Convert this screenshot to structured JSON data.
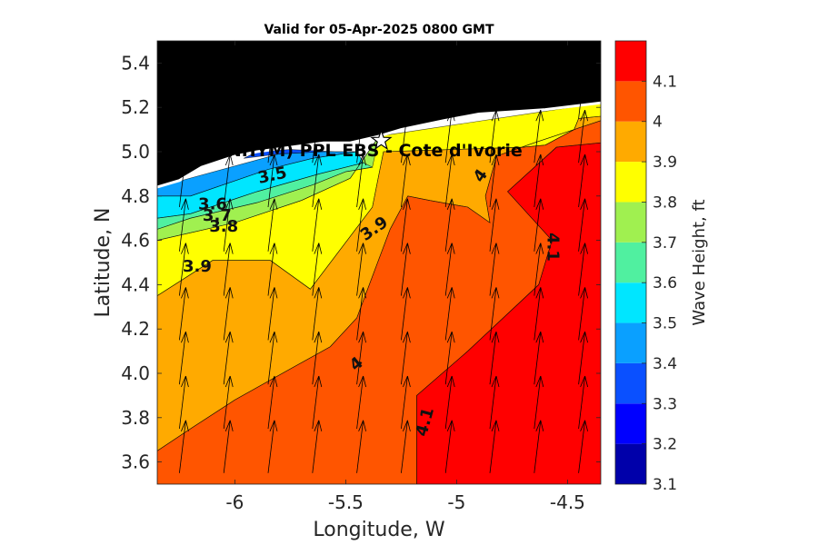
{
  "chart_data": {
    "type": "heatmap",
    "title": "Valid for 05-Apr-2025 0800 GMT",
    "xlabel": "Longitude, W",
    "ylabel": "Latitude, N",
    "xlim": [
      -6.35,
      -4.35
    ],
    "ylim": [
      3.5,
      5.5
    ],
    "xticks": [
      -6,
      -5.5,
      -5,
      -4.5
    ],
    "yticks": [
      3.6,
      3.8,
      4,
      4.2,
      4.4,
      4.6,
      4.8,
      5,
      5.2,
      5.4
    ],
    "colorbar": {
      "label": "Wave Height, ft",
      "range": [
        3.1,
        4.2
      ],
      "ticks": [
        3.1,
        3.2,
        3.3,
        3.4,
        3.5,
        3.6,
        3.7,
        3.8,
        3.9,
        4,
        4.1
      ],
      "bands": [
        {
          "from": 3.1,
          "to": 3.2,
          "color": "#0000aa"
        },
        {
          "from": 3.2,
          "to": 3.3,
          "color": "#0000ff"
        },
        {
          "from": 3.3,
          "to": 3.4,
          "color": "#0a50ff"
        },
        {
          "from": 3.4,
          "to": 3.5,
          "color": "#0aa0ff"
        },
        {
          "from": 3.5,
          "to": 3.6,
          "color": "#00e6ff"
        },
        {
          "from": 3.6,
          "to": 3.7,
          "color": "#50f0a0"
        },
        {
          "from": 3.7,
          "to": 3.8,
          "color": "#a0f050"
        },
        {
          "from": 3.8,
          "to": 3.9,
          "color": "#ffff00"
        },
        {
          "from": 3.9,
          "to": 4.0,
          "color": "#ffaa00"
        },
        {
          "from": 4.0,
          "to": 4.1,
          "color": "#ff5500"
        },
        {
          "from": 4.1,
          "to": 4.2,
          "color": "#ff0000"
        }
      ]
    },
    "regions": [
      {
        "level_min": 4.1,
        "color": "#ff0000",
        "polygon": [
          [
            -5.18,
            3.5
          ],
          [
            -4.35,
            3.5
          ],
          [
            -4.35,
            5.04
          ],
          [
            -4.55,
            5.02
          ],
          [
            -4.77,
            4.82
          ],
          [
            -4.57,
            4.6
          ],
          [
            -4.63,
            4.4
          ],
          [
            -4.95,
            4.1
          ],
          [
            -5.18,
            3.9
          ]
        ]
      },
      {
        "level_min": 4.0,
        "color": "#ff5500",
        "polygon": [
          [
            -6.35,
            3.5
          ],
          [
            -5.18,
            3.5
          ],
          [
            -5.18,
            3.9
          ],
          [
            -4.95,
            4.1
          ],
          [
            -4.63,
            4.4
          ],
          [
            -4.57,
            4.6
          ],
          [
            -4.77,
            4.82
          ],
          [
            -4.55,
            5.02
          ],
          [
            -4.35,
            5.04
          ],
          [
            -4.35,
            5.14
          ],
          [
            -4.65,
            5.04
          ],
          [
            -4.82,
            4.98
          ],
          [
            -4.87,
            4.8
          ],
          [
            -4.85,
            4.68
          ],
          [
            -4.95,
            4.75
          ],
          [
            -5.12,
            4.78
          ],
          [
            -5.22,
            4.8
          ],
          [
            -5.3,
            4.65
          ],
          [
            -5.45,
            4.25
          ],
          [
            -5.57,
            4.12
          ],
          [
            -5.75,
            4.02
          ],
          [
            -6.0,
            3.88
          ],
          [
            -6.2,
            3.75
          ],
          [
            -6.35,
            3.65
          ]
        ]
      },
      {
        "level_min": 3.9,
        "color": "#ffaa00",
        "polygon": [
          [
            -6.35,
            3.65
          ],
          [
            -6.2,
            3.75
          ],
          [
            -6.0,
            3.88
          ],
          [
            -5.75,
            4.02
          ],
          [
            -5.57,
            4.12
          ],
          [
            -5.45,
            4.25
          ],
          [
            -5.3,
            4.65
          ],
          [
            -5.22,
            4.8
          ],
          [
            -5.12,
            4.78
          ],
          [
            -4.95,
            4.75
          ],
          [
            -4.85,
            4.68
          ],
          [
            -4.87,
            4.8
          ],
          [
            -4.82,
            4.98
          ],
          [
            -4.65,
            5.04
          ],
          [
            -4.35,
            5.14
          ],
          [
            -4.35,
            5.16
          ],
          [
            -4.45,
            5.15
          ],
          [
            -4.47,
            5.1
          ],
          [
            -4.6,
            5.03
          ],
          [
            -4.7,
            5.02
          ],
          [
            -5.33,
            5.0
          ],
          [
            -5.38,
            4.75
          ],
          [
            -5.66,
            4.38
          ],
          [
            -5.84,
            4.51
          ],
          [
            -6.1,
            4.51
          ],
          [
            -6.35,
            4.35
          ]
        ]
      },
      {
        "level_min": 3.8,
        "color": "#ffff00",
        "polygon": [
          [
            -6.35,
            4.35
          ],
          [
            -6.1,
            4.51
          ],
          [
            -5.84,
            4.51
          ],
          [
            -5.66,
            4.38
          ],
          [
            -5.38,
            4.75
          ],
          [
            -5.33,
            5.0
          ],
          [
            -4.7,
            5.02
          ],
          [
            -4.6,
            5.03
          ],
          [
            -4.47,
            5.1
          ],
          [
            -4.45,
            5.15
          ],
          [
            -4.35,
            5.16
          ],
          [
            -4.35,
            5.22
          ],
          [
            -5.35,
            5.07
          ],
          [
            -5.48,
            4.88
          ],
          [
            -5.7,
            4.78
          ],
          [
            -6.0,
            4.68
          ],
          [
            -6.35,
            4.6
          ]
        ]
      },
      {
        "level_min": 3.7,
        "color": "#a0f050",
        "polygon": [
          [
            -6.35,
            4.6
          ],
          [
            -6.0,
            4.68
          ],
          [
            -5.7,
            4.78
          ],
          [
            -5.48,
            4.88
          ],
          [
            -5.35,
            5.07
          ],
          [
            -5.38,
            4.93
          ],
          [
            -5.5,
            4.91
          ],
          [
            -5.65,
            4.85
          ],
          [
            -5.9,
            4.77
          ],
          [
            -6.2,
            4.7
          ],
          [
            -6.35,
            4.65
          ]
        ]
      },
      {
        "level_min": 3.6,
        "color": "#50f0a0",
        "polygon": [
          [
            -6.35,
            4.65
          ],
          [
            -6.2,
            4.7
          ],
          [
            -5.9,
            4.77
          ],
          [
            -5.65,
            4.85
          ],
          [
            -5.5,
            4.91
          ],
          [
            -5.38,
            4.93
          ],
          [
            -5.42,
            4.95
          ],
          [
            -5.62,
            4.9
          ],
          [
            -5.9,
            4.82
          ],
          [
            -6.2,
            4.72
          ],
          [
            -6.35,
            4.7
          ]
        ]
      },
      {
        "level_min": 3.5,
        "color": "#00e6ff",
        "polygon": [
          [
            -6.35,
            4.7
          ],
          [
            -6.2,
            4.72
          ],
          [
            -5.9,
            4.82
          ],
          [
            -5.62,
            4.9
          ],
          [
            -5.42,
            4.95
          ],
          [
            -5.45,
            5.0
          ],
          [
            -5.65,
            4.97
          ],
          [
            -5.85,
            4.92
          ],
          [
            -6.2,
            4.8
          ],
          [
            -6.35,
            4.8
          ]
        ]
      },
      {
        "level_min": 3.4,
        "color": "#0aa0ff",
        "polygon": [
          [
            -6.35,
            4.8
          ],
          [
            -6.2,
            4.8
          ],
          [
            -5.85,
            4.92
          ],
          [
            -5.65,
            4.97
          ],
          [
            -5.45,
            5.0
          ],
          [
            -5.6,
            5.0
          ],
          [
            -5.8,
            4.99
          ],
          [
            -6.35,
            4.84
          ]
        ]
      },
      {
        "level_min": 3.3,
        "color": "#0a50ff",
        "polygon": [
          [
            -5.96,
            4.97
          ],
          [
            -5.8,
            4.99
          ],
          [
            -5.6,
            5.0
          ],
          [
            -5.45,
            5.0
          ],
          [
            -5.55,
            5.0
          ],
          [
            -5.75,
            5.01
          ],
          [
            -5.9,
            5.0
          ]
        ]
      }
    ],
    "land_polygon": [
      [
        -6.35,
        5.5
      ],
      [
        -4.35,
        5.5
      ],
      [
        -4.35,
        5.22
      ],
      [
        -4.6,
        5.19
      ],
      [
        -4.9,
        5.17
      ],
      [
        -5.06,
        5.14
      ],
      [
        -5.25,
        5.1
      ],
      [
        -5.35,
        5.07
      ],
      [
        -5.48,
        5.04
      ],
      [
        -5.6,
        5.04
      ],
      [
        -5.75,
        5.02
      ],
      [
        -5.9,
        5.0
      ],
      [
        -6.0,
        4.98
      ],
      [
        -6.15,
        4.93
      ],
      [
        -6.25,
        4.87
      ],
      [
        -6.35,
        4.84
      ]
    ],
    "contour_labels": [
      {
        "text": "3.5",
        "lon": -5.83,
        "lat": 4.89,
        "rotate": -12
      },
      {
        "text": "3.6",
        "lon": -6.1,
        "lat": 4.76,
        "rotate": 0
      },
      {
        "text": "3.7",
        "lon": -6.08,
        "lat": 4.71,
        "rotate": 0
      },
      {
        "text": "3.8",
        "lon": -6.05,
        "lat": 4.66,
        "rotate": 0
      },
      {
        "text": "3.9",
        "lon": -5.37,
        "lat": 4.65,
        "rotate": -35
      },
      {
        "text": "3.9",
        "lon": -6.17,
        "lat": 4.48,
        "rotate": 0
      },
      {
        "text": "4",
        "lon": -4.89,
        "lat": 4.89,
        "rotate": -55
      },
      {
        "text": "4.1",
        "lon": -4.57,
        "lat": 4.57,
        "rotate": 90
      },
      {
        "text": "4",
        "lon": -5.45,
        "lat": 4.04,
        "rotate": -40
      },
      {
        "text": "4.1",
        "lon": -5.14,
        "lat": 3.78,
        "rotate": -75
      }
    ],
    "station": {
      "name": "(ONHYM) PPL EBS  - Cote d'Ivorie",
      "lon": -5.34,
      "lat": 5.05
    },
    "wave_direction_arrows": {
      "lon_step": 0.2,
      "lat_step": 0.2,
      "lon_start": -6.25,
      "lat_start": 3.55,
      "direction": "toward north-northeast"
    }
  }
}
